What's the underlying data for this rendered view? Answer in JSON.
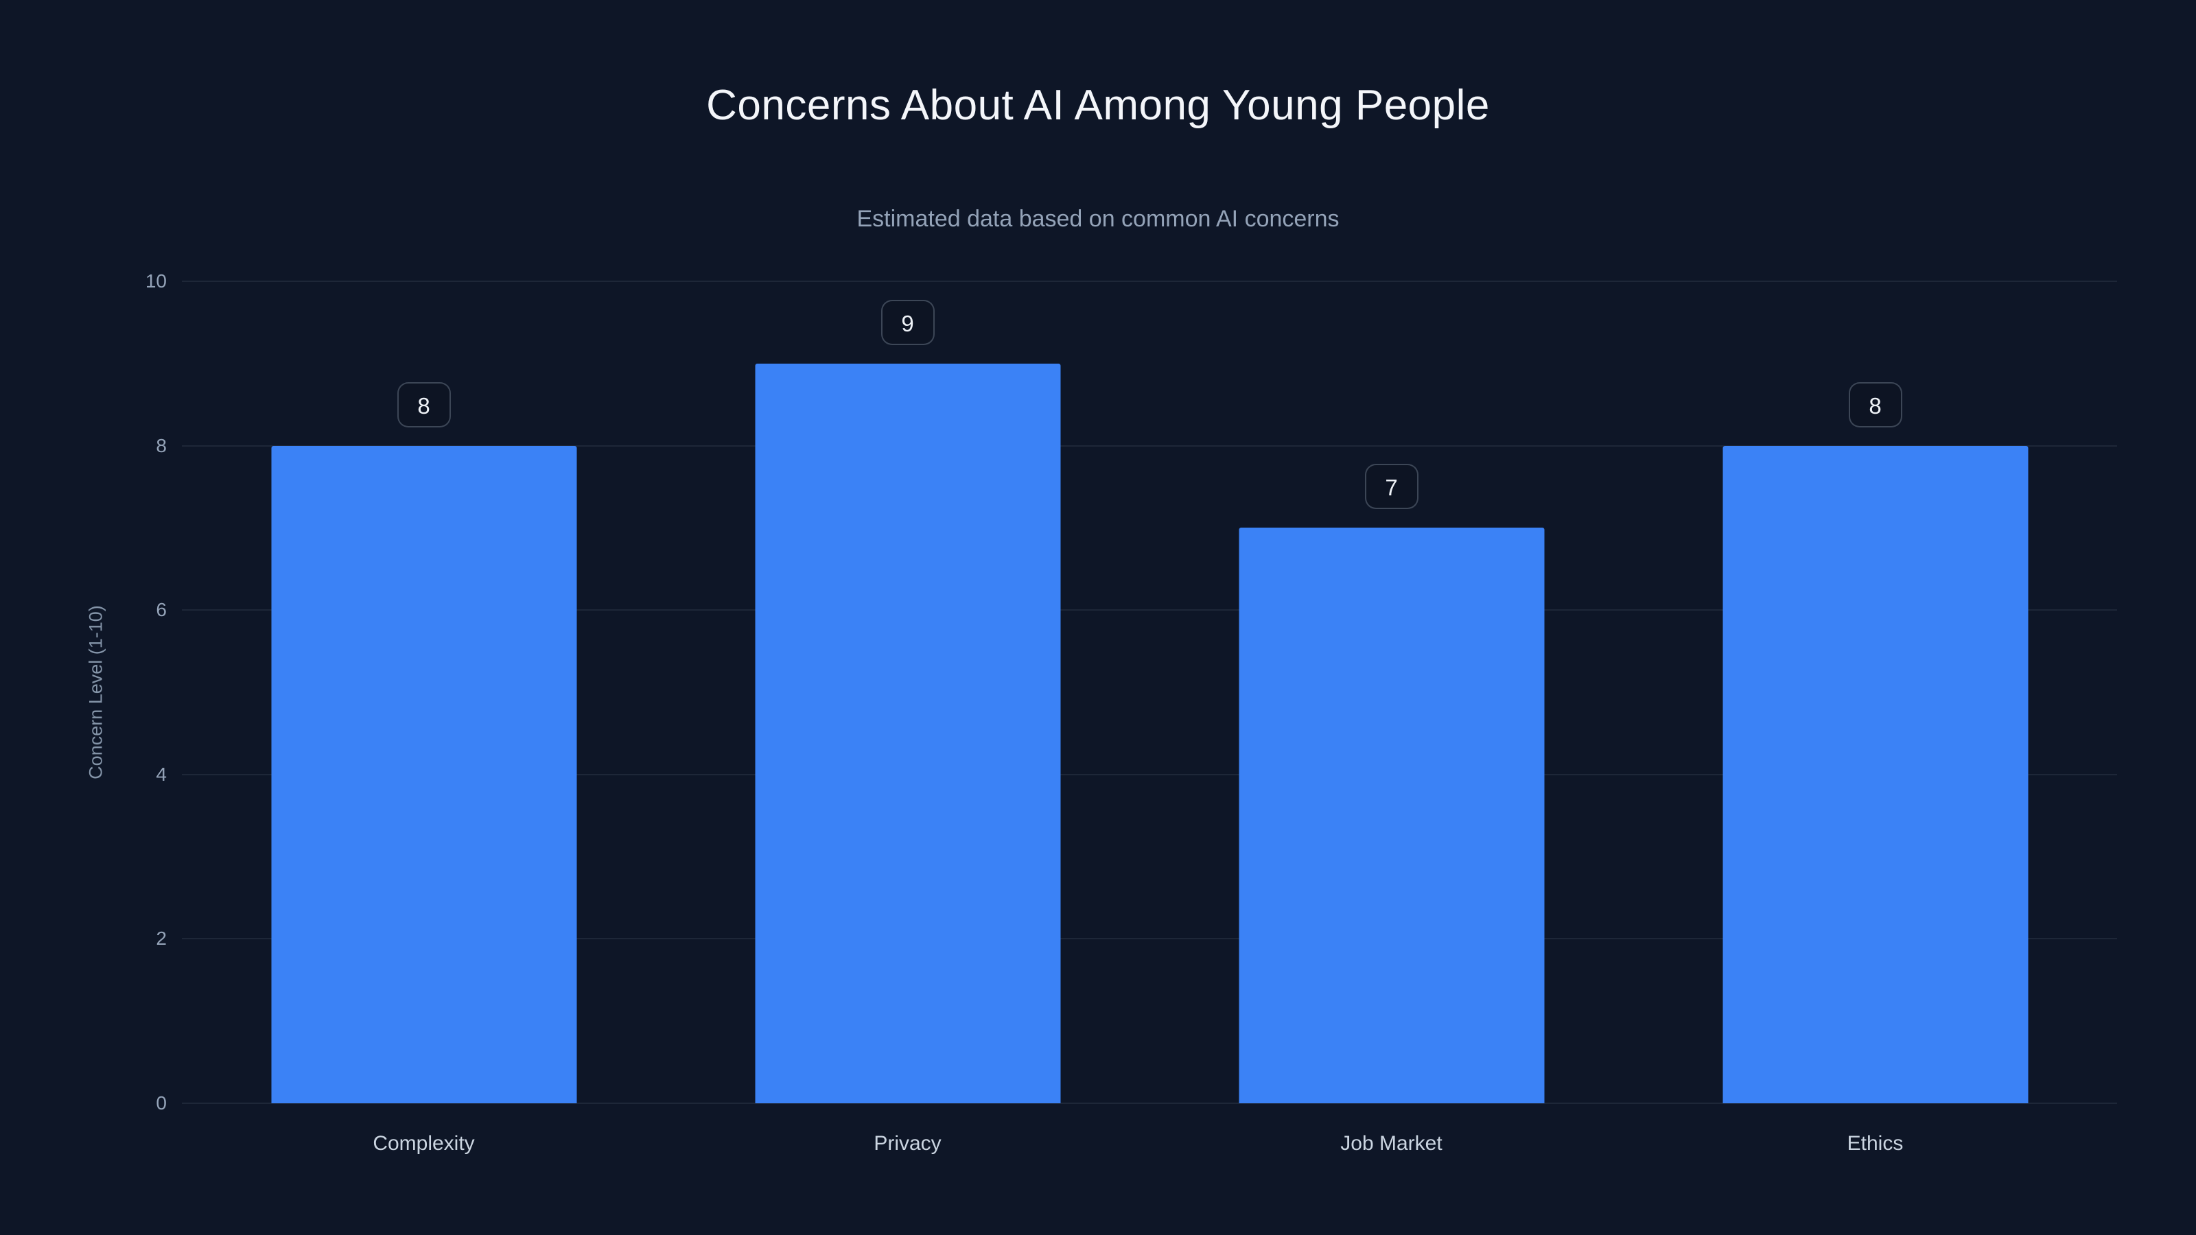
{
  "theme": {
    "background": "#0e1627",
    "bar_color": "#3b82f6",
    "grid_color": "rgba(148,163,184,0.12)",
    "title_color": "#f4f6fa",
    "subtitle_color": "#94a3b8",
    "tick_color": "#94a3b8",
    "x_label_color": "#cbd5e1"
  },
  "chart_data": {
    "type": "bar",
    "title": "Concerns About AI Among Young People",
    "subtitle": "Estimated data based on common AI concerns",
    "categories": [
      "Complexity",
      "Privacy",
      "Job Market",
      "Ethics"
    ],
    "values": [
      8,
      9,
      7,
      8
    ],
    "xlabel": "",
    "ylabel": "Concern Level (1-10)",
    "ylim": [
      0,
      10
    ],
    "yticks": [
      0,
      2,
      4,
      6,
      8,
      10
    ],
    "grid": true,
    "legend": false,
    "bar_color": "#3b82f6"
  }
}
